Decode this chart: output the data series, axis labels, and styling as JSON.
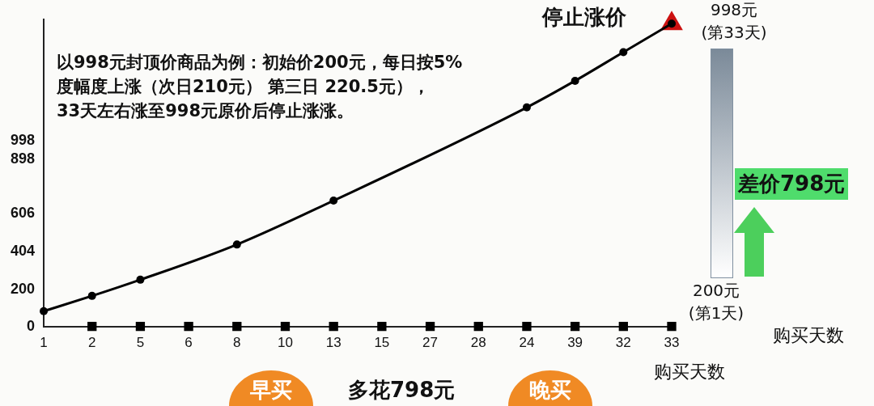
{
  "chart_data": {
    "type": "line",
    "title": "以998元封顶价商品为例：初始价200元，每日按5%\n度幅度上涨（次日210元） 第三日 220.5元），\n33天左右涨至998元原价后停止涨涨。",
    "categories": [
      "1",
      "2",
      "5",
      "6",
      "8",
      "10",
      "13",
      "15",
      "27",
      "28",
      "24",
      "39",
      "32",
      "33"
    ],
    "series": [
      {
        "color": "#000000",
        "marker": "circle",
        "values": [
          82,
          164,
          251,
          null,
          440,
          null,
          676,
          null,
          null,
          null,
          1177,
          1320,
          1474,
          1627
        ]
      },
      {
        "type": "scatter",
        "color": "#000000",
        "marker": "square",
        "values": [
          null,
          0,
          0,
          0,
          0,
          0,
          0,
          0,
          0,
          0,
          0,
          0,
          0,
          0
        ]
      },
      {
        "type": "scatter",
        "color": "#cc1111",
        "marker": "triangle",
        "values": [
          null,
          null,
          null,
          null,
          null,
          null,
          null,
          null,
          null,
          null,
          null,
          null,
          null,
          1627
        ]
      }
    ],
    "ylim": [
      0,
      1650
    ],
    "yticks": [
      0,
      200,
      404,
      606,
      898,
      998
    ],
    "grid": false,
    "legend": false,
    "annotations": [
      {
        "text": "停止涨价",
        "x": "33",
        "y": 1627
      },
      "998元\n(第33天)",
      "200元\n(第1天)",
      "差价798元",
      "购买天数",
      "早买",
      "多花798元",
      "晚买",
      "购买天数"
    ]
  }
}
